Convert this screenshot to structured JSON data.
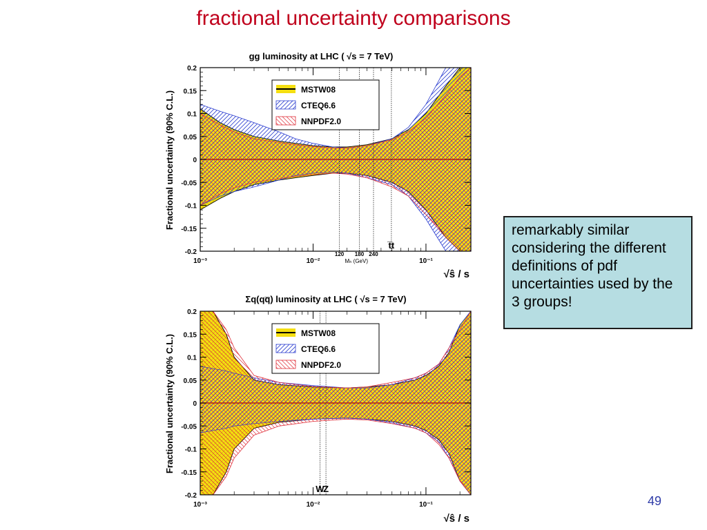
{
  "slide": {
    "title": "fractional uncertainty comparisons",
    "note": "remarkably similar considering the different definitions of pdf uncertainties used by the 3 groups!",
    "page_number": "49"
  },
  "colors": {
    "mstw": "#f5df10",
    "cteq": "#2d3fd0",
    "nnpdf": "#e0303a",
    "zero_line": "#b02010",
    "frame": "#000000"
  },
  "chart_data": [
    {
      "type": "area",
      "title": "gg luminosity at LHC ( √s = 7 TeV)",
      "ylabel": "Fractional uncertainty (90% C.L.)",
      "xlabel": "√ŝ / s",
      "xscale": "log",
      "xlim": [
        0.001,
        0.25
      ],
      "ylim": [
        -0.2,
        0.2
      ],
      "xticks": [
        "10⁻³",
        "10⁻²",
        "10⁻¹"
      ],
      "yticks": [
        "0.2",
        "0.15",
        "0.1",
        "0.05",
        "0",
        "-0.05",
        "-0.1",
        "-0.15",
        "-0.2"
      ],
      "legend": {
        "placement": "top-center",
        "entries": [
          "MSTW08",
          "CTEQ6.6",
          "NNPDF2.0"
        ]
      },
      "x": [
        0.001,
        0.0015,
        0.002,
        0.003,
        0.005,
        0.007,
        0.01,
        0.015,
        0.02,
        0.03,
        0.05,
        0.07,
        0.1,
        0.15,
        0.2,
        0.25
      ],
      "series": [
        {
          "name": "MSTW08",
          "upper": [
            0.11,
            0.08,
            0.065,
            0.05,
            0.04,
            0.035,
            0.03,
            0.027,
            0.027,
            0.032,
            0.045,
            0.065,
            0.1,
            0.16,
            0.2,
            0.2
          ],
          "lower": [
            -0.11,
            -0.085,
            -0.07,
            -0.055,
            -0.045,
            -0.04,
            -0.035,
            -0.03,
            -0.03,
            -0.035,
            -0.05,
            -0.07,
            -0.11,
            -0.17,
            -0.2,
            -0.2
          ]
        },
        {
          "name": "CTEQ6.6",
          "upper": [
            0.12,
            0.105,
            0.095,
            0.08,
            0.06,
            0.045,
            0.035,
            0.027,
            0.025,
            0.03,
            0.045,
            0.07,
            0.12,
            0.2,
            0.2,
            0.2
          ],
          "lower": [
            -0.1,
            -0.08,
            -0.07,
            -0.06,
            -0.045,
            -0.035,
            -0.03,
            -0.028,
            -0.03,
            -0.04,
            -0.055,
            -0.08,
            -0.13,
            -0.2,
            -0.2,
            -0.2
          ]
        },
        {
          "name": "NNPDF2.0",
          "upper": [
            0.1,
            0.075,
            0.06,
            0.045,
            0.037,
            0.032,
            0.028,
            0.025,
            0.025,
            0.03,
            0.043,
            0.06,
            0.09,
            0.14,
            0.18,
            0.2
          ],
          "lower": [
            -0.1,
            -0.075,
            -0.062,
            -0.05,
            -0.042,
            -0.037,
            -0.033,
            -0.03,
            -0.032,
            -0.04,
            -0.06,
            -0.08,
            -0.12,
            -0.17,
            -0.2,
            -0.2
          ]
        }
      ],
      "markers": [
        {
          "x": 0.0171,
          "label": "120"
        },
        {
          "x": 0.0257,
          "label": "180"
        },
        {
          "x": 0.0343,
          "label": "240"
        },
        {
          "x": 0.0494,
          "label": "t̅t"
        }
      ],
      "marker_caption": "Mₕ (GeV)"
    },
    {
      "type": "area",
      "title": "Σq(qq̅) luminosity at LHC ( √s = 7 TeV)",
      "ylabel": "Fractional uncertainty (90% C.L.)",
      "xlabel": "√ŝ / s",
      "xscale": "log",
      "xlim": [
        0.001,
        0.25
      ],
      "ylim": [
        -0.2,
        0.2
      ],
      "xticks": [
        "10⁻³",
        "10⁻²",
        "10⁻¹"
      ],
      "yticks": [
        "0.2",
        "0.15",
        "0.1",
        "0.05",
        "0",
        "-0.05",
        "-0.1",
        "-0.15",
        "-0.2"
      ],
      "legend": {
        "placement": "top-center",
        "entries": [
          "MSTW08",
          "CTEQ6.6",
          "NNPDF2.0"
        ]
      },
      "x": [
        0.001,
        0.0013,
        0.0017,
        0.002,
        0.003,
        0.005,
        0.01,
        0.02,
        0.03,
        0.05,
        0.08,
        0.1,
        0.13,
        0.16,
        0.2,
        0.25
      ],
      "series": [
        {
          "name": "MSTW08",
          "upper": [
            0.2,
            0.2,
            0.15,
            0.1,
            0.05,
            0.04,
            0.035,
            0.033,
            0.035,
            0.04,
            0.05,
            0.06,
            0.08,
            0.11,
            0.17,
            0.2
          ],
          "lower": [
            -0.2,
            -0.2,
            -0.15,
            -0.1,
            -0.055,
            -0.042,
            -0.035,
            -0.033,
            -0.035,
            -0.04,
            -0.05,
            -0.06,
            -0.08,
            -0.11,
            -0.17,
            -0.2
          ]
        },
        {
          "name": "CTEQ6.6",
          "upper": [
            0.08,
            0.075,
            0.07,
            0.065,
            0.055,
            0.045,
            0.038,
            0.033,
            0.033,
            0.04,
            0.055,
            0.065,
            0.085,
            0.12,
            0.17,
            0.2
          ],
          "lower": [
            -0.065,
            -0.06,
            -0.055,
            -0.05,
            -0.045,
            -0.04,
            -0.035,
            -0.033,
            -0.035,
            -0.043,
            -0.055,
            -0.065,
            -0.085,
            -0.12,
            -0.17,
            -0.2
          ]
        },
        {
          "name": "NNPDF2.0",
          "upper": [
            0.2,
            0.2,
            0.16,
            0.12,
            0.06,
            0.045,
            0.036,
            0.033,
            0.035,
            0.045,
            0.055,
            0.065,
            0.085,
            0.12,
            0.16,
            0.2
          ],
          "lower": [
            -0.2,
            -0.2,
            -0.16,
            -0.12,
            -0.07,
            -0.05,
            -0.04,
            -0.035,
            -0.037,
            -0.045,
            -0.055,
            -0.065,
            -0.09,
            -0.12,
            -0.17,
            -0.2
          ]
        }
      ],
      "markers": [
        {
          "x": 0.0115,
          "label": "W"
        },
        {
          "x": 0.013,
          "label": "Z"
        }
      ],
      "marker_caption": ""
    }
  ]
}
